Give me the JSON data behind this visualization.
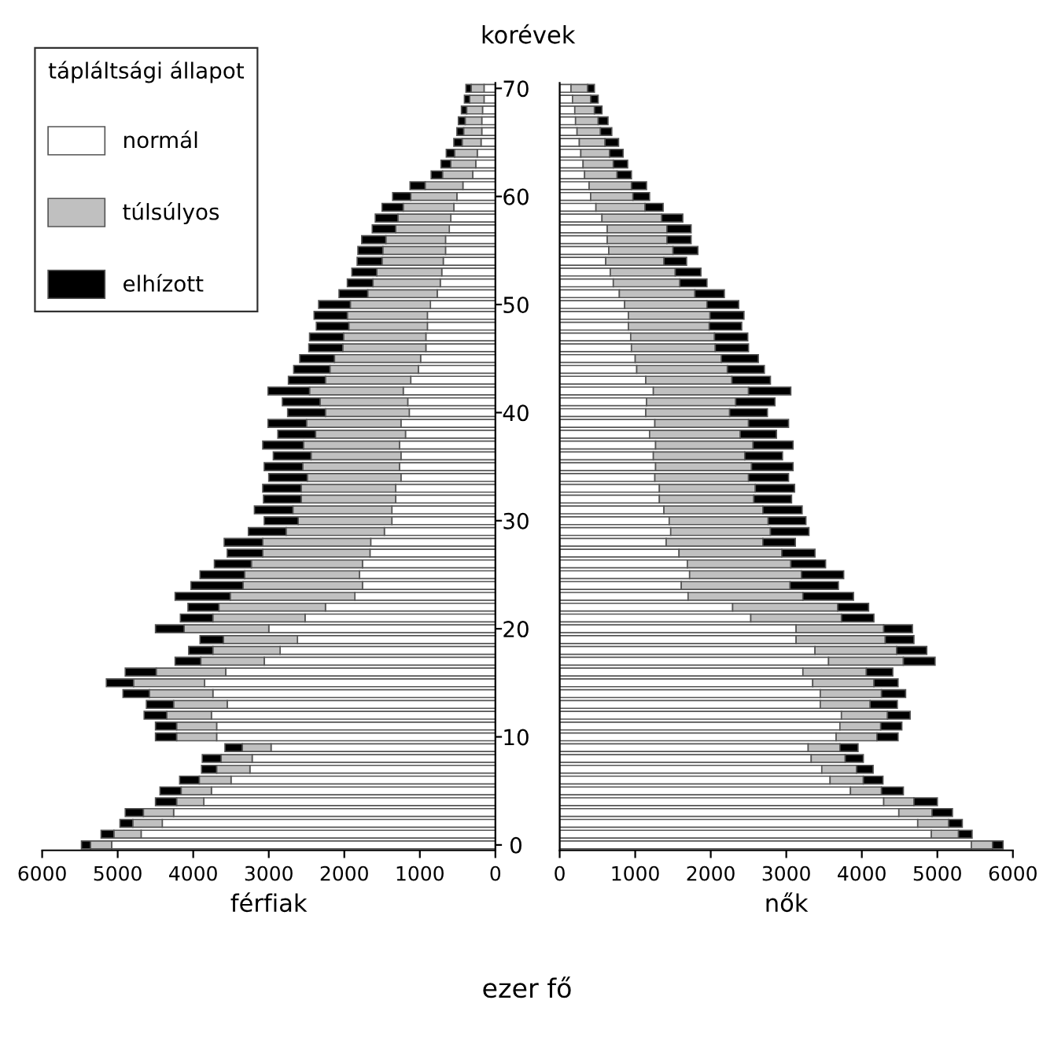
{
  "chart_data": [
    {
      "type": "bar",
      "orientation": "horizontal",
      "stacked": true,
      "xlabel": "férfiak",
      "legend": "top left",
      "legend_title": "tápláltsági állapot",
      "tick_labels": "x",
      "annotations": [
        "ezer fő"
      ],
      "categories": [
        "70",
        null,
        null,
        null,
        null,
        null,
        null,
        null,
        null,
        null,
        "60",
        null,
        null,
        null,
        null,
        null,
        null,
        null,
        null,
        null,
        "50",
        null,
        null,
        null,
        null,
        null,
        null,
        null,
        null,
        null,
        "40",
        null,
        null,
        null,
        null,
        null,
        null,
        null,
        null,
        null,
        "30",
        null,
        null,
        null,
        null,
        null,
        null,
        null,
        null,
        null,
        "20",
        null,
        null,
        null,
        null,
        null,
        null,
        null,
        null,
        null,
        "10",
        null,
        null,
        null,
        null,
        null,
        null,
        null,
        null,
        null,
        "0"
      ],
      "xlim": [
        6000,
        0
      ],
      "xticks": [
        0,
        1000,
        2000,
        3000,
        4000,
        5000,
        6000
      ],
      "series": [
        {
          "name": "normál",
          "color": "#ffffff",
          "values": [
            150,
            150,
            170,
            180,
            180,
            190,
            240,
            260,
            300,
            430,
            510,
            550,
            590,
            610,
            660,
            660,
            690,
            710,
            730,
            770,
            860,
            900,
            900,
            920,
            920,
            990,
            1020,
            1120,
            1220,
            1160,
            1140,
            1250,
            1190,
            1270,
            1250,
            1270,
            1250,
            1320,
            1320,
            1370,
            1370,
            1470,
            1650,
            1660,
            1760,
            1800,
            1760,
            1860,
            2250,
            2520,
            3000,
            2620,
            2850,
            3060,
            3570,
            3850,
            3740,
            3550,
            3760,
            3690,
            3690,
            2970,
            3220,
            3250,
            3500,
            3760,
            3860,
            4260,
            4410,
            4690,
            5080
          ]
        },
        {
          "name": "túlsúlyos",
          "color": "#c0c0c0",
          "values": [
            170,
            190,
            210,
            220,
            240,
            250,
            300,
            330,
            400,
            500,
            610,
            670,
            700,
            710,
            790,
            830,
            810,
            860,
            890,
            920,
            1060,
            1060,
            1040,
            1090,
            1100,
            1140,
            1170,
            1130,
            1240,
            1160,
            1110,
            1250,
            1190,
            1270,
            1190,
            1280,
            1240,
            1250,
            1250,
            1310,
            1240,
            1300,
            1430,
            1420,
            1470,
            1520,
            1580,
            1650,
            1410,
            1220,
            1120,
            980,
            890,
            840,
            920,
            940,
            840,
            710,
            590,
            530,
            530,
            380,
            410,
            440,
            420,
            400,
            360,
            400,
            390,
            360,
            280
          ]
        },
        {
          "name": "elhízott",
          "color": "#000000",
          "values": [
            70,
            70,
            70,
            90,
            90,
            110,
            110,
            130,
            150,
            200,
            240,
            280,
            300,
            310,
            320,
            330,
            330,
            330,
            340,
            380,
            420,
            440,
            430,
            450,
            450,
            460,
            480,
            490,
            550,
            500,
            500,
            510,
            500,
            540,
            500,
            510,
            510,
            510,
            500,
            510,
            450,
            500,
            510,
            470,
            490,
            590,
            690,
            730,
            410,
            430,
            380,
            310,
            320,
            340,
            410,
            360,
            350,
            360,
            300,
            280,
            280,
            230,
            250,
            200,
            260,
            280,
            280,
            240,
            170,
            170,
            120
          ]
        }
      ]
    },
    {
      "type": "bar",
      "orientation": "horizontal",
      "stacked": true,
      "xlabel": "nők",
      "ylabel": "korévek",
      "categories": [
        "70",
        null,
        null,
        null,
        null,
        null,
        null,
        null,
        null,
        null,
        "60",
        null,
        null,
        null,
        null,
        null,
        null,
        null,
        null,
        null,
        "50",
        null,
        null,
        null,
        null,
        null,
        null,
        null,
        null,
        null,
        "40",
        null,
        null,
        null,
        null,
        null,
        null,
        null,
        null,
        null,
        "30",
        null,
        null,
        null,
        null,
        null,
        null,
        null,
        null,
        null,
        "20",
        null,
        null,
        null,
        null,
        null,
        null,
        null,
        null,
        null,
        "10",
        null,
        null,
        null,
        null,
        null,
        null,
        null,
        null,
        null,
        "0"
      ],
      "xlim": [
        0,
        6000
      ],
      "xticks": [
        0,
        1000,
        2000,
        3000,
        4000,
        5000,
        6000
      ],
      "series": [
        {
          "color": "#ffffff",
          "values": [
            150,
            170,
            200,
            210,
            230,
            260,
            280,
            310,
            330,
            390,
            410,
            480,
            560,
            630,
            630,
            650,
            610,
            670,
            710,
            790,
            860,
            910,
            910,
            940,
            950,
            1000,
            1020,
            1140,
            1240,
            1150,
            1140,
            1260,
            1190,
            1270,
            1240,
            1270,
            1260,
            1320,
            1320,
            1380,
            1450,
            1470,
            1410,
            1580,
            1690,
            1720,
            1610,
            1700,
            2290,
            2530,
            3130,
            3130,
            3380,
            3560,
            3220,
            3350,
            3450,
            3450,
            3730,
            3710,
            3660,
            3290,
            3330,
            3470,
            3580,
            3850,
            4290,
            4490,
            4740,
            4920,
            5450
          ]
        },
        {
          "color": "#c0c0c0",
          "values": [
            220,
            240,
            260,
            300,
            310,
            340,
            380,
            400,
            430,
            560,
            560,
            650,
            790,
            790,
            790,
            850,
            770,
            860,
            880,
            1000,
            1090,
            1080,
            1070,
            1110,
            1110,
            1140,
            1200,
            1140,
            1260,
            1180,
            1110,
            1240,
            1200,
            1290,
            1210,
            1270,
            1240,
            1270,
            1250,
            1310,
            1310,
            1320,
            1280,
            1360,
            1370,
            1480,
            1440,
            1520,
            1390,
            1200,
            1160,
            1180,
            1080,
            990,
            840,
            810,
            810,
            660,
            610,
            540,
            540,
            420,
            450,
            460,
            440,
            410,
            400,
            440,
            410,
            360,
            280
          ]
        },
        {
          "color": "#000000",
          "values": [
            90,
            100,
            100,
            130,
            150,
            180,
            180,
            190,
            190,
            200,
            220,
            240,
            280,
            320,
            320,
            330,
            300,
            340,
            360,
            390,
            420,
            450,
            430,
            440,
            440,
            490,
            490,
            510,
            560,
            520,
            500,
            530,
            480,
            530,
            500,
            550,
            530,
            520,
            500,
            520,
            500,
            510,
            430,
            440,
            460,
            560,
            640,
            670,
            410,
            430,
            380,
            380,
            400,
            420,
            350,
            320,
            320,
            360,
            300,
            280,
            280,
            240,
            240,
            220,
            260,
            290,
            310,
            270,
            180,
            180,
            140
          ]
        }
      ]
    }
  ]
}
